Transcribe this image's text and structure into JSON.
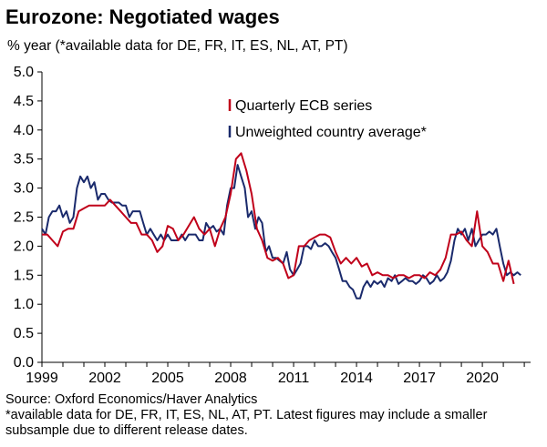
{
  "chart_data": {
    "type": "line",
    "title": "Eurozone: Negotiated wages",
    "subtitle": "% year (*available data for DE, FR, IT, ES, NL, AT, PT)",
    "xlabel": "",
    "ylabel": "",
    "ylim": [
      0.0,
      5.0
    ],
    "xlim": [
      1999.0,
      2022.3
    ],
    "y_ticks": [
      "0.0",
      "0.5",
      "1.0",
      "1.5",
      "2.0",
      "2.5",
      "3.0",
      "3.5",
      "4.0",
      "4.5",
      "5.0"
    ],
    "x_ticks": [
      "1999",
      "2002",
      "2005",
      "2008",
      "2011",
      "2014",
      "2017",
      "2020"
    ],
    "grid": false,
    "legend_position": "top-right",
    "colors": {
      "ecb": "#c0001a",
      "country": "#1a2a6c"
    },
    "series": [
      {
        "name": "Quarterly ECB series",
        "x": [
          1999.0,
          1999.25,
          1999.5,
          1999.75,
          2000.0,
          2000.25,
          2000.5,
          2000.75,
          2001.0,
          2001.25,
          2001.5,
          2001.75,
          2002.0,
          2002.25,
          2002.5,
          2002.75,
          2003.0,
          2003.25,
          2003.5,
          2003.75,
          2004.0,
          2004.25,
          2004.5,
          2004.75,
          2005.0,
          2005.25,
          2005.5,
          2005.75,
          2006.0,
          2006.25,
          2006.5,
          2006.75,
          2007.0,
          2007.25,
          2007.5,
          2007.75,
          2008.0,
          2008.25,
          2008.5,
          2008.75,
          2009.0,
          2009.25,
          2009.5,
          2009.75,
          2010.0,
          2010.25,
          2010.5,
          2010.75,
          2011.0,
          2011.25,
          2011.5,
          2011.75,
          2012.0,
          2012.25,
          2012.5,
          2012.75,
          2013.0,
          2013.25,
          2013.5,
          2013.75,
          2014.0,
          2014.25,
          2014.5,
          2014.75,
          2015.0,
          2015.25,
          2015.5,
          2015.75,
          2016.0,
          2016.25,
          2016.5,
          2016.75,
          2017.0,
          2017.25,
          2017.5,
          2017.75,
          2018.0,
          2018.25,
          2018.5,
          2018.75,
          2019.0,
          2019.25,
          2019.5,
          2019.75,
          2020.0,
          2020.25,
          2020.5,
          2020.75,
          2021.0,
          2021.25,
          2021.5
        ],
        "values": [
          2.2,
          2.2,
          2.1,
          2.0,
          2.25,
          2.3,
          2.3,
          2.6,
          2.65,
          2.7,
          2.7,
          2.7,
          2.7,
          2.8,
          2.7,
          2.6,
          2.5,
          2.4,
          2.4,
          2.2,
          2.2,
          2.1,
          1.9,
          2.0,
          2.35,
          2.3,
          2.1,
          2.2,
          2.35,
          2.5,
          2.3,
          2.2,
          2.3,
          2.0,
          2.3,
          2.5,
          2.9,
          3.5,
          3.6,
          3.3,
          2.9,
          2.3,
          2.1,
          1.8,
          1.75,
          1.8,
          1.7,
          1.45,
          1.5,
          2.0,
          2.0,
          2.1,
          2.15,
          2.2,
          2.2,
          2.15,
          1.9,
          1.7,
          1.8,
          1.7,
          1.8,
          1.65,
          1.7,
          1.5,
          1.55,
          1.5,
          1.5,
          1.45,
          1.5,
          1.5,
          1.45,
          1.5,
          1.5,
          1.45,
          1.55,
          1.5,
          1.6,
          1.8,
          2.2,
          2.2,
          2.25,
          2.1,
          2.0,
          2.6,
          2.0,
          1.9,
          1.7,
          1.7,
          1.4,
          1.75,
          1.35
        ]
      },
      {
        "name": "Unweighted country average*",
        "x": [
          1999.0,
          1999.17,
          1999.33,
          1999.5,
          1999.67,
          1999.83,
          2000.0,
          2000.17,
          2000.33,
          2000.5,
          2000.67,
          2000.83,
          2001.0,
          2001.17,
          2001.33,
          2001.5,
          2001.67,
          2001.83,
          2002.0,
          2002.17,
          2002.33,
          2002.5,
          2002.67,
          2002.83,
          2003.0,
          2003.17,
          2003.33,
          2003.5,
          2003.67,
          2003.83,
          2004.0,
          2004.17,
          2004.33,
          2004.5,
          2004.67,
          2004.83,
          2005.0,
          2005.17,
          2005.33,
          2005.5,
          2005.67,
          2005.83,
          2006.0,
          2006.17,
          2006.33,
          2006.5,
          2006.67,
          2006.83,
          2007.0,
          2007.17,
          2007.33,
          2007.5,
          2007.67,
          2007.83,
          2008.0,
          2008.17,
          2008.33,
          2008.5,
          2008.67,
          2008.83,
          2009.0,
          2009.17,
          2009.33,
          2009.5,
          2009.67,
          2009.83,
          2010.0,
          2010.17,
          2010.33,
          2010.5,
          2010.67,
          2010.83,
          2011.0,
          2011.17,
          2011.33,
          2011.5,
          2011.67,
          2011.83,
          2012.0,
          2012.17,
          2012.33,
          2012.5,
          2012.67,
          2012.83,
          2013.0,
          2013.17,
          2013.33,
          2013.5,
          2013.67,
          2013.83,
          2014.0,
          2014.17,
          2014.33,
          2014.5,
          2014.67,
          2014.83,
          2015.0,
          2015.17,
          2015.33,
          2015.5,
          2015.67,
          2015.83,
          2016.0,
          2016.17,
          2016.33,
          2016.5,
          2016.67,
          2016.83,
          2017.0,
          2017.17,
          2017.33,
          2017.5,
          2017.67,
          2017.83,
          2018.0,
          2018.17,
          2018.33,
          2018.5,
          2018.67,
          2018.83,
          2019.0,
          2019.17,
          2019.33,
          2019.5,
          2019.67,
          2019.83,
          2020.0,
          2020.17,
          2020.33,
          2020.5,
          2020.67,
          2020.83,
          2021.0,
          2021.17,
          2021.33,
          2021.5,
          2021.67,
          2021.83
        ],
        "values": [
          2.3,
          2.2,
          2.5,
          2.6,
          2.6,
          2.7,
          2.5,
          2.6,
          2.4,
          2.5,
          3.0,
          3.2,
          3.1,
          3.2,
          3.0,
          3.1,
          2.8,
          2.9,
          2.9,
          2.8,
          2.75,
          2.75,
          2.75,
          2.7,
          2.7,
          2.5,
          2.6,
          2.6,
          2.6,
          2.4,
          2.2,
          2.3,
          2.2,
          2.1,
          2.2,
          2.1,
          2.2,
          2.1,
          2.1,
          2.1,
          2.2,
          2.1,
          2.2,
          2.2,
          2.2,
          2.1,
          2.1,
          2.4,
          2.3,
          2.35,
          2.25,
          2.3,
          2.2,
          2.7,
          3.0,
          3.0,
          3.4,
          3.2,
          3.0,
          2.5,
          2.6,
          2.3,
          2.5,
          2.4,
          1.9,
          2.0,
          1.8,
          1.8,
          1.75,
          1.7,
          1.9,
          1.6,
          1.5,
          1.6,
          1.7,
          2.0,
          2.0,
          1.95,
          2.1,
          2.0,
          2.0,
          2.05,
          2.0,
          1.9,
          1.8,
          1.6,
          1.4,
          1.4,
          1.3,
          1.25,
          1.1,
          1.1,
          1.3,
          1.4,
          1.3,
          1.4,
          1.35,
          1.4,
          1.3,
          1.45,
          1.4,
          1.5,
          1.35,
          1.4,
          1.45,
          1.4,
          1.4,
          1.35,
          1.4,
          1.5,
          1.45,
          1.35,
          1.4,
          1.5,
          1.4,
          1.45,
          1.55,
          1.75,
          2.1,
          2.3,
          2.2,
          2.3,
          2.1,
          2.3,
          2.0,
          2.1,
          2.2,
          2.2,
          2.25,
          2.2,
          2.3,
          2.0,
          1.7,
          1.5,
          1.55,
          1.5,
          1.55,
          1.5
        ]
      }
    ]
  },
  "footer": {
    "source": "Source: Oxford Economics/Haver Analytics",
    "note": "*available data for DE, FR, IT, ES, NL, AT, PT. Latest figures may include a smaller subsample due to different release dates."
  }
}
